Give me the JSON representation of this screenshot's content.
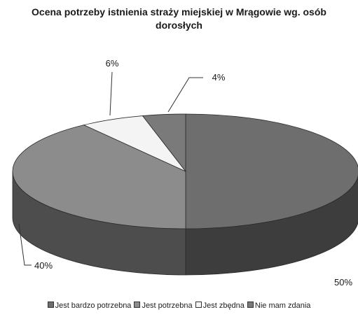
{
  "chart_data": {
    "type": "pie",
    "title_lines": [
      "Ocena potrzeby istnienia straży miejskiej w Mrągowie wg. osób",
      "dorosłych"
    ],
    "categories": [
      "Jest bardzo potrzebna",
      "Jest potrzebna",
      "Jest zbędna",
      "Nie mam zdania"
    ],
    "values": [
      50,
      40,
      6,
      4
    ],
    "data_labels": [
      "50%",
      "40%",
      "6%",
      "4%"
    ],
    "colors": {
      "Jest bardzo potrzebna": "#6e6e6e",
      "Jest potrzebna": "#8c8c8c",
      "Jest zbędna": "#f4f4f4",
      "Nie mam zdania": "#7a7a7a"
    },
    "legend_position": "bottom",
    "style": "3d-pie"
  }
}
